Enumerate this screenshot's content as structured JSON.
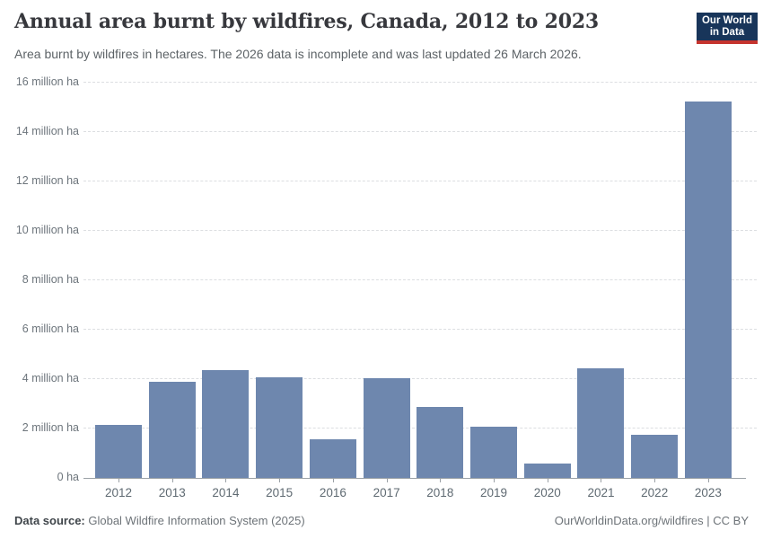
{
  "header": {
    "title": "Annual area burnt by wildfires, Canada, 2012 to 2023",
    "subtitle": "Area burnt by wildfires in hectares. The 2026 data is incomplete and was last updated 26 March 2026.",
    "logo": {
      "line1": "Our World",
      "line2": "in Data"
    }
  },
  "chart_data": {
    "type": "bar",
    "title": "Annual area burnt by wildfires, Canada, 2012 to 2023",
    "categories": [
      "2012",
      "2013",
      "2014",
      "2015",
      "2016",
      "2017",
      "2018",
      "2019",
      "2020",
      "2021",
      "2022",
      "2023"
    ],
    "values_million_ha": [
      2.15,
      3.88,
      4.38,
      4.08,
      1.55,
      4.05,
      2.88,
      2.08,
      0.6,
      4.45,
      1.73,
      15.24
    ],
    "unit": "hectares",
    "xlabel": "",
    "ylabel": "",
    "ylim_million_ha": [
      0,
      16
    ],
    "ytick_interval_million_ha": 2,
    "ytick_labels": [
      "0 ha",
      "2 million ha",
      "4 million ha",
      "6 million ha",
      "8 million ha",
      "10 million ha",
      "12 million ha",
      "14 million ha",
      "16 million ha"
    ],
    "grid": "horizontal-dashed",
    "legend": "none",
    "bar_color": "#6e87ae"
  },
  "footer": {
    "source_label": "Data source:",
    "source_text": " Global Wildfire Information System (2025)",
    "attribution": "OurWorldinData.org/wildfires | CC BY"
  },
  "colors": {
    "bar": "#6e87ae",
    "title_text": "#37383d",
    "subtitle_text": "#5d6367",
    "axis_text": "#6d757c",
    "gridline": "#dcdee1",
    "axis_line": "#9ba1a6",
    "logo_background": "#18355a",
    "logo_accent": "#c5342e",
    "background": "#ffffff"
  }
}
